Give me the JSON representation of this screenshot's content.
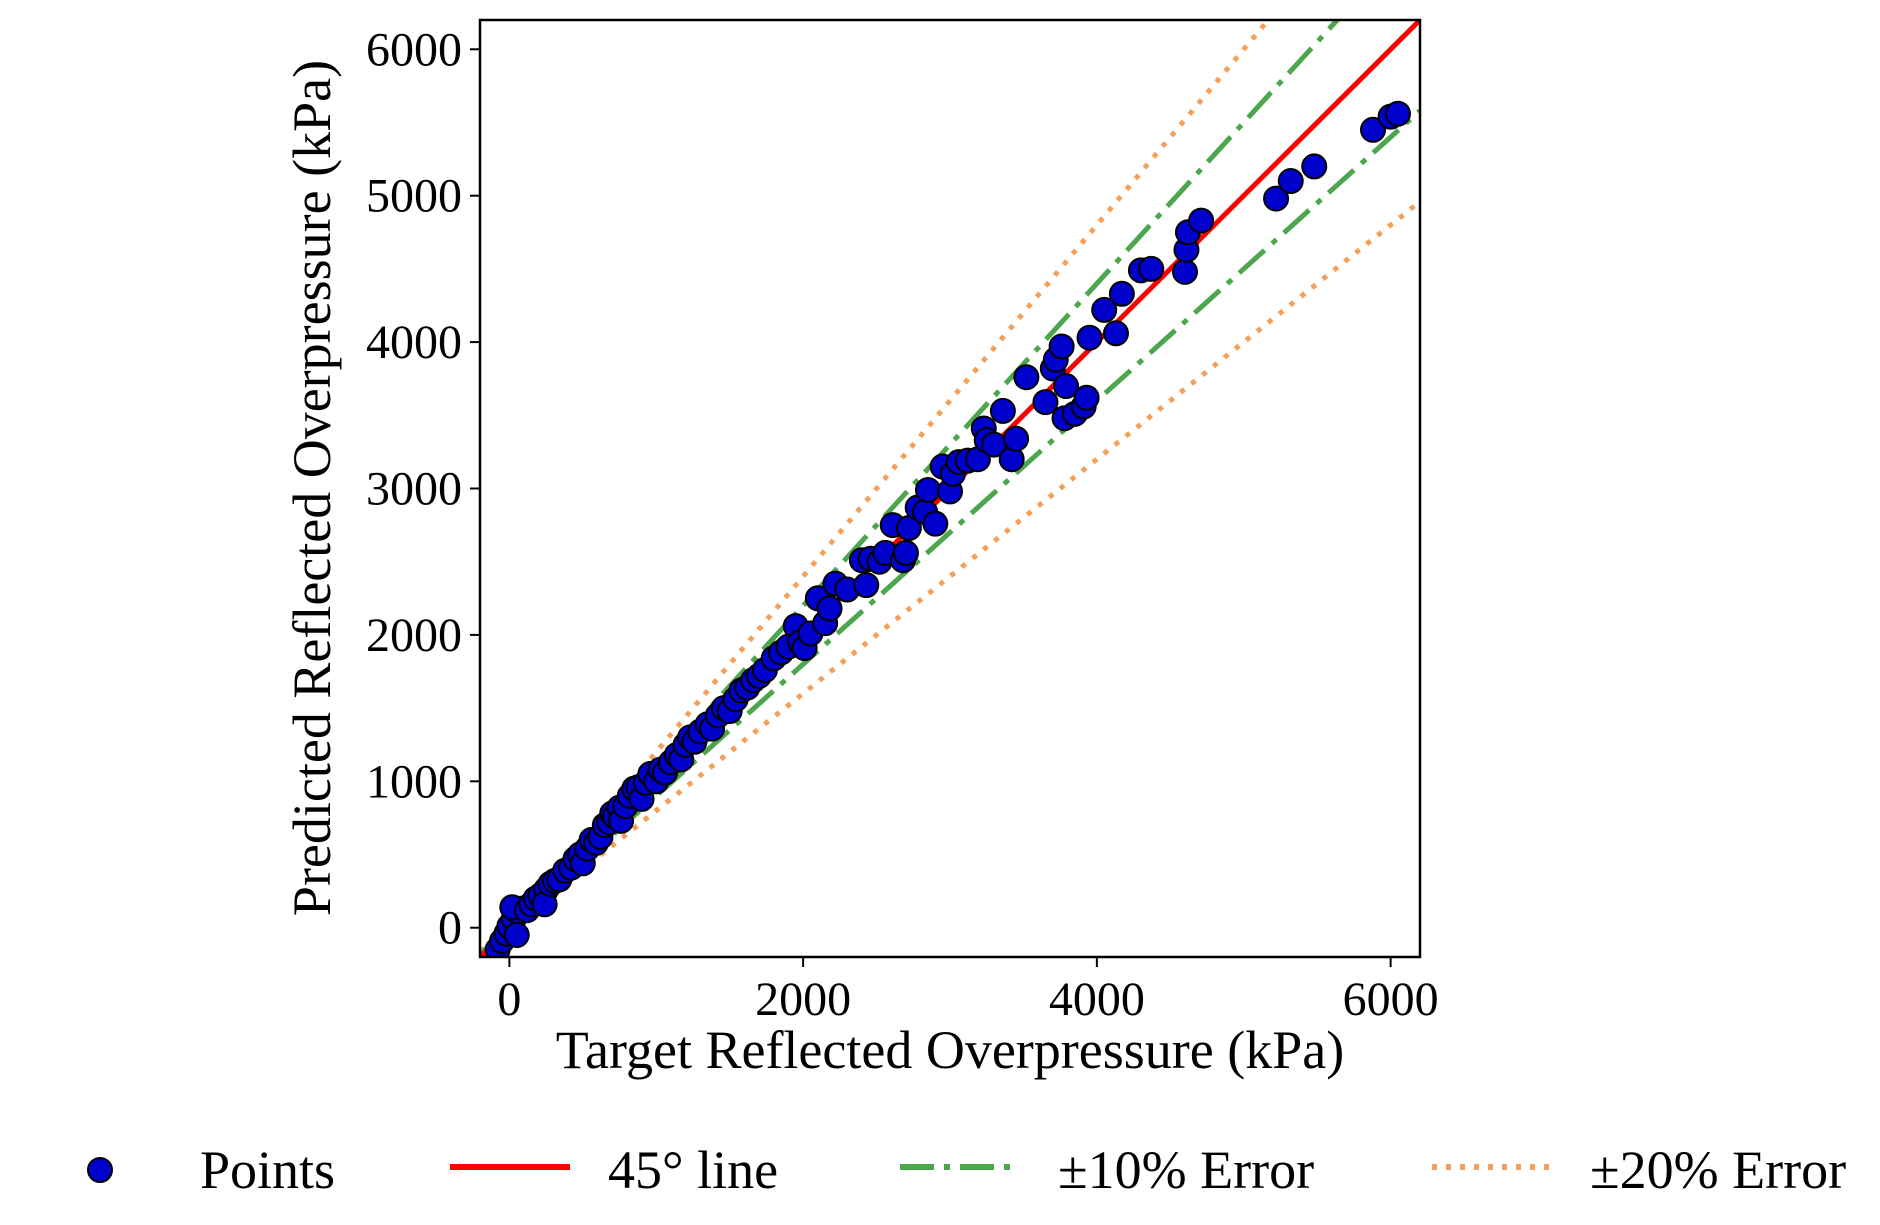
{
  "chart_data": {
    "type": "scatter",
    "xlabel": "Target Reflected Overpressure (kPa)",
    "ylabel": "Predicted Reflected Overpressure (kPa)",
    "xlim": [
      -200,
      6200
    ],
    "ylim": [
      -200,
      6200
    ],
    "xticks": [
      0,
      2000,
      4000,
      6000
    ],
    "yticks": [
      0,
      1000,
      2000,
      3000,
      4000,
      5000,
      6000
    ],
    "grid": false,
    "legend_position": "bottom, below plot",
    "series": [
      {
        "name": "Points",
        "kind": "scatter",
        "color": "#0000cc",
        "edge_color": "#000000",
        "points": [
          [
            -80,
            -150
          ],
          [
            -50,
            -90
          ],
          [
            -20,
            -40
          ],
          [
            0,
            10
          ],
          [
            30,
            60
          ],
          [
            60,
            110
          ],
          [
            90,
            130
          ],
          [
            20,
            140
          ],
          [
            50,
            -50
          ],
          [
            120,
            120
          ],
          [
            150,
            160
          ],
          [
            180,
            200
          ],
          [
            210,
            220
          ],
          [
            250,
            260
          ],
          [
            240,
            160
          ],
          [
            280,
            300
          ],
          [
            310,
            320
          ],
          [
            340,
            330
          ],
          [
            380,
            390
          ],
          [
            420,
            410
          ],
          [
            450,
            470
          ],
          [
            480,
            500
          ],
          [
            500,
            440
          ],
          [
            530,
            540
          ],
          [
            560,
            600
          ],
          [
            590,
            580
          ],
          [
            620,
            620
          ],
          [
            650,
            700
          ],
          [
            680,
            720
          ],
          [
            700,
            780
          ],
          [
            720,
            760
          ],
          [
            750,
            820
          ],
          [
            760,
            730
          ],
          [
            790,
            830
          ],
          [
            820,
            900
          ],
          [
            850,
            950
          ],
          [
            880,
            960
          ],
          [
            900,
            880
          ],
          [
            930,
            990
          ],
          [
            960,
            1050
          ],
          [
            1000,
            1000
          ],
          [
            1030,
            1080
          ],
          [
            1060,
            1060
          ],
          [
            1100,
            1130
          ],
          [
            1140,
            1180
          ],
          [
            1170,
            1150
          ],
          [
            1200,
            1250
          ],
          [
            1230,
            1300
          ],
          [
            1260,
            1270
          ],
          [
            1300,
            1340
          ],
          [
            1350,
            1390
          ],
          [
            1380,
            1360
          ],
          [
            1420,
            1450
          ],
          [
            1460,
            1500
          ],
          [
            1500,
            1480
          ],
          [
            1540,
            1560
          ],
          [
            1580,
            1620
          ],
          [
            1620,
            1640
          ],
          [
            1660,
            1690
          ],
          [
            1700,
            1720
          ],
          [
            1740,
            1760
          ],
          [
            1800,
            1840
          ],
          [
            1850,
            1880
          ],
          [
            1900,
            1920
          ],
          [
            1950,
            2060
          ],
          [
            1980,
            1950
          ],
          [
            2010,
            1910
          ],
          [
            2050,
            2010
          ],
          [
            2100,
            2250
          ],
          [
            2150,
            2080
          ],
          [
            2180,
            2180
          ],
          [
            2220,
            2350
          ],
          [
            2300,
            2310
          ],
          [
            2400,
            2510
          ],
          [
            2430,
            2340
          ],
          [
            2460,
            2520
          ],
          [
            2520,
            2500
          ],
          [
            2560,
            2560
          ],
          [
            2610,
            2750
          ],
          [
            2680,
            2510
          ],
          [
            2700,
            2560
          ],
          [
            2720,
            2730
          ],
          [
            2780,
            2870
          ],
          [
            2830,
            2840
          ],
          [
            2850,
            2990
          ],
          [
            2900,
            2760
          ],
          [
            2950,
            3150
          ],
          [
            3000,
            2980
          ],
          [
            3020,
            3100
          ],
          [
            3060,
            3180
          ],
          [
            3120,
            3190
          ],
          [
            3190,
            3200
          ],
          [
            3230,
            3410
          ],
          [
            3250,
            3330
          ],
          [
            3300,
            3300
          ],
          [
            3360,
            3530
          ],
          [
            3420,
            3200
          ],
          [
            3450,
            3340
          ],
          [
            3520,
            3760
          ],
          [
            3650,
            3590
          ],
          [
            3700,
            3820
          ],
          [
            3720,
            3880
          ],
          [
            3760,
            3970
          ],
          [
            3780,
            3480
          ],
          [
            3790,
            3700
          ],
          [
            3850,
            3510
          ],
          [
            3910,
            3560
          ],
          [
            3930,
            3620
          ],
          [
            3950,
            4030
          ],
          [
            4050,
            4220
          ],
          [
            4130,
            4060
          ],
          [
            4170,
            4330
          ],
          [
            4300,
            4490
          ],
          [
            4370,
            4500
          ],
          [
            4600,
            4480
          ],
          [
            4610,
            4630
          ],
          [
            4620,
            4750
          ],
          [
            4710,
            4830
          ],
          [
            5220,
            4980
          ],
          [
            5320,
            5100
          ],
          [
            5480,
            5200
          ],
          [
            5880,
            5450
          ],
          [
            6000,
            5540
          ],
          [
            6050,
            5560
          ]
        ]
      },
      {
        "name": "45° line",
        "kind": "line",
        "color": "#ff0000",
        "slope": 1.0,
        "dash": "solid"
      },
      {
        "name": "±10% Error",
        "kind": "line",
        "color": "#4ca64c",
        "slopes": [
          1.1,
          0.9
        ],
        "dash": "dashdot"
      },
      {
        "name": "±20% Error",
        "kind": "line",
        "color": "#f5a05a",
        "slopes": [
          1.2,
          0.8
        ],
        "dash": "dotted"
      }
    ]
  }
}
